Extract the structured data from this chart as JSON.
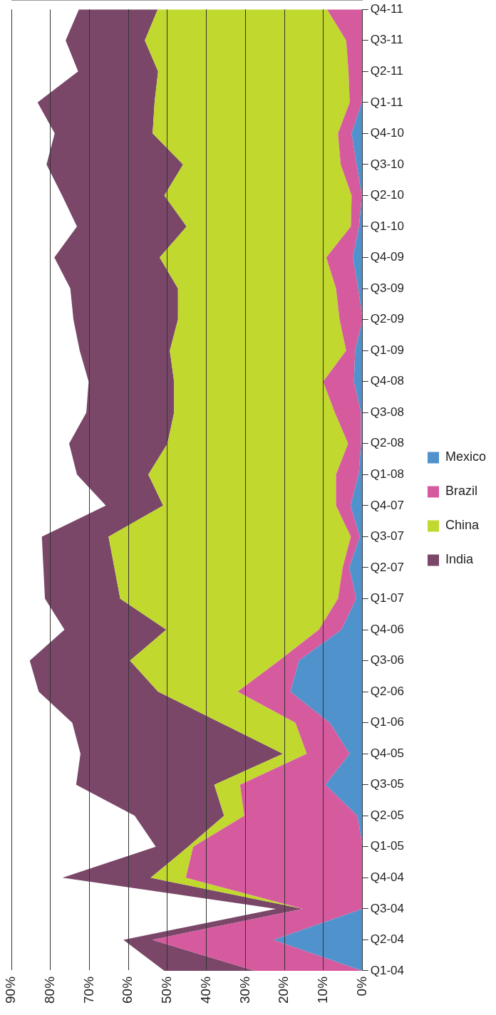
{
  "chart_data": {
    "type": "area",
    "stacked": true,
    "orientation": "horizontal",
    "categories": [
      "Q4-11",
      "Q3-11",
      "Q2-11",
      "Q1-11",
      "Q4-10",
      "Q3-10",
      "Q2-10",
      "Q1-10",
      "Q4-09",
      "Q3-09",
      "Q2-09",
      "Q1-09",
      "Q4-08",
      "Q3-08",
      "Q2-08",
      "Q1-08",
      "Q4-07",
      "Q3-07",
      "Q2-07",
      "Q1-07",
      "Q4-06",
      "Q3-06",
      "Q2-06",
      "Q1-06",
      "Q4-05",
      "Q3-05",
      "Q2-05",
      "Q1-05",
      "Q4-04",
      "Q3-04",
      "Q2-04",
      "Q1-04"
    ],
    "series": [
      {
        "name": "Mexico",
        "color": "#4f92cc",
        "values": [
          0,
          0,
          0,
          0.2,
          2.8,
          1.5,
          0.2,
          0.9,
          2.5,
          1.1,
          0,
          1.9,
          2.2,
          0.4,
          0.4,
          1,
          3.1,
          0.7,
          3.4,
          1.6,
          5.4,
          16.3,
          18.5,
          8.4,
          3.3,
          9.5,
          1.3,
          0,
          0,
          0,
          22.8,
          0
        ]
      },
      {
        "name": "Brazil",
        "color": "#d65a9e",
        "values": [
          9.1,
          4.2,
          3.6,
          3.1,
          3.5,
          4.1,
          2.6,
          2.1,
          6.8,
          5.7,
          5.9,
          2.3,
          7.9,
          6.7,
          3.3,
          5.8,
          3.7,
          2.3,
          1.7,
          4.7,
          5.8,
          5.1,
          13.5,
          8.8,
          11,
          21.9,
          29,
          43.4,
          45.3,
          15.3,
          31.1,
          27.6
        ]
      },
      {
        "name": "China",
        "color": "#c1d82f",
        "values": [
          43.4,
          51.6,
          48.8,
          50,
          47.5,
          40.4,
          48,
          42.1,
          42.7,
          40.5,
          41.4,
          45.2,
          38.2,
          41.2,
          46.3,
          48.1,
          44.3,
          62.1,
          58.5,
          55.8,
          39.1,
          38.2,
          20.4,
          19.2,
          6.1,
          6.6,
          5.2,
          1.3,
          9,
          0,
          0,
          0
        ]
      },
      {
        "name": "India",
        "color": "#7a4769",
        "values": [
          20.2,
          20.3,
          20.5,
          30,
          25.1,
          35,
          26.2,
          28.1,
          27,
          27.6,
          26.8,
          23.1,
          21.9,
          22.5,
          25.2,
          18.3,
          14.7,
          17.1,
          18.2,
          19.3,
          26.1,
          25.7,
          30.6,
          38,
          51.9,
          35.4,
          22.9,
          8.3,
          22.6,
          6.9,
          7.4,
          23.2
        ]
      }
    ],
    "xlim": [
      90,
      0
    ],
    "xticks": [
      {
        "value": 0,
        "label": "0%"
      },
      {
        "value": 10,
        "label": "10%"
      },
      {
        "value": 20,
        "label": "20%"
      },
      {
        "value": 30,
        "label": "30%"
      },
      {
        "value": 40,
        "label": "40%"
      },
      {
        "value": 50,
        "label": "50%"
      },
      {
        "value": 60,
        "label": "60%"
      },
      {
        "value": 70,
        "label": "70%"
      },
      {
        "value": 80,
        "label": "80%"
      },
      {
        "value": 90,
        "label": "90%"
      }
    ],
    "grid": "x",
    "legend": "right"
  }
}
